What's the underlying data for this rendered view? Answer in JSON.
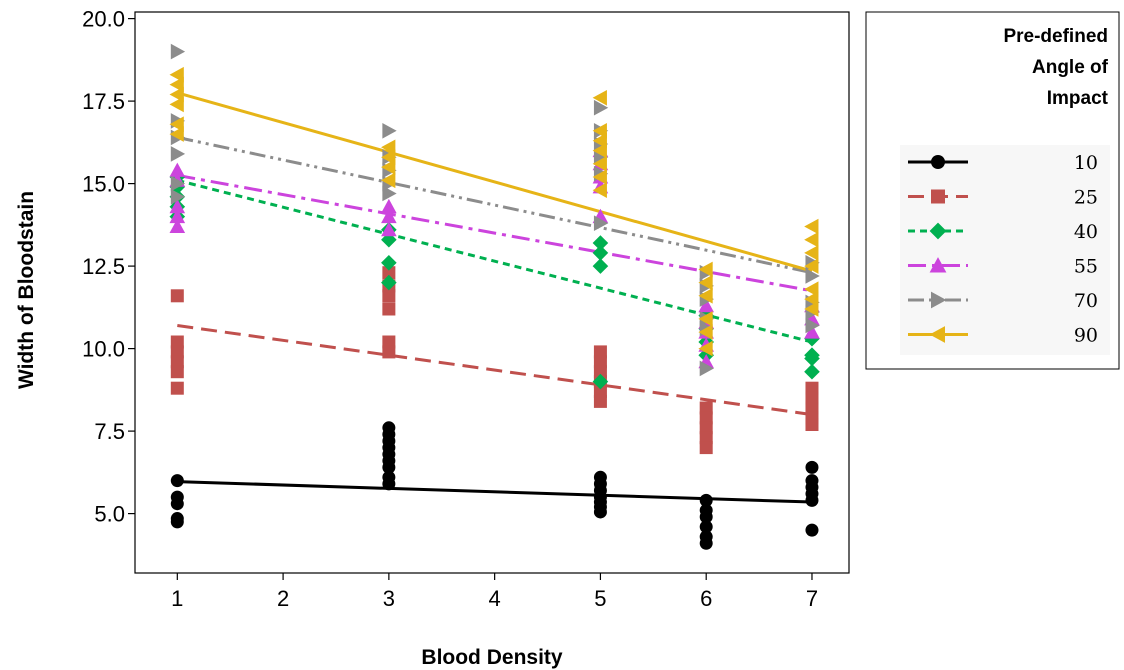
{
  "chart_data": {
    "type": "scatter",
    "title": "",
    "xlabel": "Blood Density",
    "ylabel": "Width of Bloodstain",
    "xlim": [
      0.6,
      7.35
    ],
    "ylim": [
      3.2,
      20.2
    ],
    "xticks": [
      "1",
      "2",
      "3",
      "4",
      "5",
      "6",
      "7"
    ],
    "yticks": [
      "5.0",
      "7.5",
      "10.0",
      "12.5",
      "15.0",
      "17.5",
      "20.0"
    ],
    "grid": false,
    "legend": {
      "title_lines": [
        "Pre-defined",
        "Angle of",
        "Impact"
      ],
      "placement": "right"
    },
    "series": [
      {
        "name": "10",
        "color": "#000000",
        "marker": "circle",
        "dash": "solid",
        "fit": [
          [
            1,
            5.97
          ],
          [
            7,
            5.35
          ]
        ],
        "points": [
          [
            1,
            6.0
          ],
          [
            1,
            5.5
          ],
          [
            1,
            5.3
          ],
          [
            1,
            4.85
          ],
          [
            1,
            4.75
          ],
          [
            3,
            7.6
          ],
          [
            3,
            7.4
          ],
          [
            3,
            7.2
          ],
          [
            3,
            7.0
          ],
          [
            3,
            6.8
          ],
          [
            3,
            6.6
          ],
          [
            3,
            6.4
          ],
          [
            3,
            6.1
          ],
          [
            3,
            5.9
          ],
          [
            5,
            6.1
          ],
          [
            5,
            5.9
          ],
          [
            5,
            5.7
          ],
          [
            5,
            5.5
          ],
          [
            5,
            5.35
          ],
          [
            5,
            5.2
          ],
          [
            5,
            5.05
          ],
          [
            6,
            5.4
          ],
          [
            6,
            5.1
          ],
          [
            6,
            4.9
          ],
          [
            6,
            4.6
          ],
          [
            6,
            4.3
          ],
          [
            6,
            4.1
          ],
          [
            7,
            6.4
          ],
          [
            7,
            6.0
          ],
          [
            7,
            5.8
          ],
          [
            7,
            5.6
          ],
          [
            7,
            5.4
          ],
          [
            7,
            4.5
          ]
        ]
      },
      {
        "name": "25",
        "color": "#c0504d",
        "marker": "square",
        "dash": "long-dash",
        "fit": [
          [
            1,
            10.7
          ],
          [
            7,
            8.0
          ]
        ],
        "points": [
          [
            1,
            11.6
          ],
          [
            1,
            10.2
          ],
          [
            1,
            9.9
          ],
          [
            1,
            9.6
          ],
          [
            1,
            9.3
          ],
          [
            1,
            8.8
          ],
          [
            3,
            12.3
          ],
          [
            3,
            11.9
          ],
          [
            3,
            11.6
          ],
          [
            3,
            11.2
          ],
          [
            3,
            10.2
          ],
          [
            3,
            9.9
          ],
          [
            5,
            9.9
          ],
          [
            5,
            9.6
          ],
          [
            5,
            9.3
          ],
          [
            5,
            9.0
          ],
          [
            5,
            8.7
          ],
          [
            5,
            8.4
          ],
          [
            6,
            8.2
          ],
          [
            6,
            7.9
          ],
          [
            6,
            7.6
          ],
          [
            6,
            7.3
          ],
          [
            6,
            7.0
          ],
          [
            7,
            8.8
          ],
          [
            7,
            8.5
          ],
          [
            7,
            8.2
          ],
          [
            7,
            7.9
          ],
          [
            7,
            7.7
          ]
        ]
      },
      {
        "name": "40",
        "color": "#00b050",
        "marker": "diamond",
        "dash": "short-dash",
        "fit": [
          [
            1,
            15.1
          ],
          [
            7,
            10.2
          ]
        ],
        "points": [
          [
            1,
            15.2
          ],
          [
            1,
            14.9
          ],
          [
            1,
            14.6
          ],
          [
            1,
            14.3
          ],
          [
            1,
            14.0
          ],
          [
            3,
            13.6
          ],
          [
            3,
            13.3
          ],
          [
            3,
            12.6
          ],
          [
            3,
            12.0
          ],
          [
            5,
            13.2
          ],
          [
            5,
            12.9
          ],
          [
            5,
            12.5
          ],
          [
            5,
            9.0
          ],
          [
            6,
            11.0
          ],
          [
            6,
            10.6
          ],
          [
            6,
            10.2
          ],
          [
            6,
            9.8
          ],
          [
            7,
            10.3
          ],
          [
            7,
            9.8
          ],
          [
            7,
            9.7
          ],
          [
            7,
            9.3
          ]
        ]
      },
      {
        "name": "55",
        "color": "#cc44dd",
        "marker": "triangle-up",
        "dash": "dash-dot",
        "fit": [
          [
            1,
            15.25
          ],
          [
            7,
            11.75
          ]
        ],
        "points": [
          [
            1,
            15.4
          ],
          [
            1,
            15.1
          ],
          [
            1,
            14.3
          ],
          [
            1,
            14.0
          ],
          [
            1,
            13.7
          ],
          [
            3,
            14.3
          ],
          [
            3,
            14.0
          ],
          [
            3,
            13.6
          ],
          [
            5,
            16.0
          ],
          [
            5,
            15.6
          ],
          [
            5,
            15.2
          ],
          [
            5,
            14.9
          ],
          [
            5,
            14.0
          ],
          [
            6,
            11.3
          ],
          [
            6,
            10.8
          ],
          [
            6,
            10.5
          ],
          [
            6,
            10.1
          ],
          [
            6,
            9.6
          ],
          [
            7,
            11.3
          ],
          [
            7,
            10.9
          ],
          [
            7,
            10.5
          ]
        ]
      },
      {
        "name": "70",
        "color": "#8c8c8c",
        "marker": "triangle-right",
        "dash": "dash-dot-dot",
        "fit": [
          [
            1,
            16.4
          ],
          [
            7,
            12.3
          ]
        ],
        "points": [
          [
            1,
            19.0
          ],
          [
            1,
            16.9
          ],
          [
            1,
            16.4
          ],
          [
            1,
            15.9
          ],
          [
            1,
            15.0
          ],
          [
            1,
            14.6
          ],
          [
            3,
            16.6
          ],
          [
            3,
            15.8
          ],
          [
            3,
            15.4
          ],
          [
            3,
            15.0
          ],
          [
            3,
            14.7
          ],
          [
            5,
            17.3
          ],
          [
            5,
            16.6
          ],
          [
            5,
            16.2
          ],
          [
            5,
            15.8
          ],
          [
            5,
            15.3
          ],
          [
            5,
            13.8
          ],
          [
            6,
            12.3
          ],
          [
            6,
            11.9
          ],
          [
            6,
            11.5
          ],
          [
            6,
            10.9
          ],
          [
            6,
            10.6
          ],
          [
            6,
            9.4
          ],
          [
            7,
            12.6
          ],
          [
            7,
            12.2
          ],
          [
            7,
            11.4
          ],
          [
            7,
            11.1
          ],
          [
            7,
            10.7
          ]
        ]
      },
      {
        "name": "90",
        "color": "#e6b417",
        "marker": "triangle-left",
        "dash": "solid",
        "fit": [
          [
            1,
            17.75
          ],
          [
            7,
            12.35
          ]
        ],
        "points": [
          [
            1,
            18.3
          ],
          [
            1,
            18.0
          ],
          [
            1,
            17.7
          ],
          [
            1,
            17.4
          ],
          [
            1,
            16.8
          ],
          [
            1,
            16.5
          ],
          [
            3,
            16.1
          ],
          [
            3,
            15.8
          ],
          [
            3,
            15.5
          ],
          [
            3,
            15.1
          ],
          [
            5,
            17.6
          ],
          [
            5,
            16.6
          ],
          [
            5,
            16.3
          ],
          [
            5,
            16.0
          ],
          [
            5,
            15.6
          ],
          [
            5,
            15.2
          ],
          [
            5,
            14.8
          ],
          [
            6,
            12.4
          ],
          [
            6,
            12.0
          ],
          [
            6,
            11.6
          ],
          [
            6,
            10.9
          ],
          [
            6,
            10.5
          ],
          [
            6,
            10.0
          ],
          [
            7,
            13.7
          ],
          [
            7,
            13.3
          ],
          [
            7,
            12.9
          ],
          [
            7,
            12.5
          ],
          [
            7,
            11.8
          ],
          [
            7,
            11.5
          ],
          [
            7,
            11.2
          ]
        ]
      }
    ]
  }
}
